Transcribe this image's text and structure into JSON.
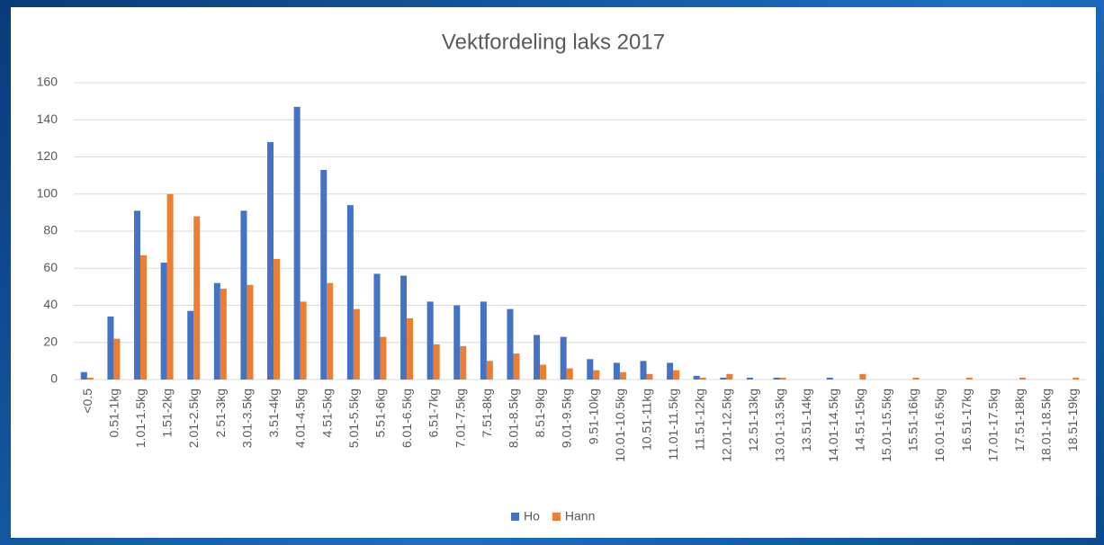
{
  "chart_data": {
    "type": "bar",
    "title": "Vektfordeling laks 2017",
    "categories": [
      "<0.5",
      "0.51-1kg",
      "1.01-1.5kg",
      "1.51-2kg",
      "2.01-2.5kg",
      "2.51-3kg",
      "3.01-3.5kg",
      "3.51-4kg",
      "4.01-4.5kg",
      "4.51-5kg",
      "5.01-5.5kg",
      "5.51-6kg",
      "6.01-6.5kg",
      "6.51-7kg",
      "7.01-7.5kg",
      "7.51-8kg",
      "8.01-8.5kg",
      "8.51-9kg",
      "9.01-9.5kg",
      "9.51-10kg",
      "10.01-10.5kg",
      "10.51-11kg",
      "11.01-11.5kg",
      "11.51-12kg",
      "12.01-12.5kg",
      "12.51-13kg",
      "13.01-13.5kg",
      "13.51-14kg",
      "14.01-14.5kg",
      "14.51-15kg",
      "15.01-15.5kg",
      "15.51-16kg",
      "16.01-16.5kg",
      "16.51-17kg",
      "17.01-17.5kg",
      "17.51-18kg",
      "18.01-18.5kg",
      "18.51-19kg"
    ],
    "series": [
      {
        "name": "Ho",
        "color": "#4472c4",
        "values": [
          4,
          34,
          91,
          63,
          37,
          52,
          91,
          128,
          147,
          113,
          94,
          57,
          56,
          42,
          40,
          42,
          38,
          24,
          23,
          11,
          9,
          10,
          9,
          2,
          1,
          1,
          1,
          0,
          1,
          0,
          0,
          0,
          0,
          0,
          0,
          0,
          0,
          0
        ]
      },
      {
        "name": "Hann",
        "color": "#ed7d31",
        "values": [
          1,
          22,
          67,
          100,
          88,
          49,
          51,
          65,
          42,
          52,
          38,
          23,
          33,
          19,
          18,
          10,
          14,
          8,
          6,
          5,
          4,
          3,
          5,
          1,
          3,
          0,
          1,
          0,
          0,
          3,
          0,
          1,
          0,
          1,
          0,
          1,
          0,
          1
        ]
      }
    ],
    "ylim": [
      0,
      160
    ],
    "yticks": [
      0,
      20,
      40,
      60,
      80,
      100,
      120,
      140,
      160
    ],
    "grid": true,
    "legend": "bottom"
  }
}
